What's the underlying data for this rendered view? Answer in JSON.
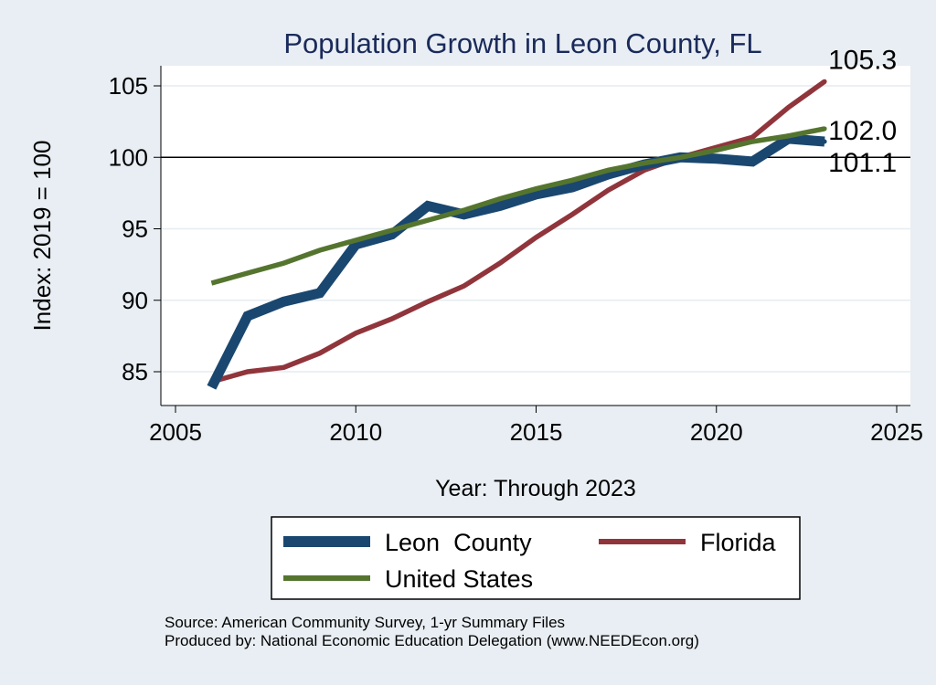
{
  "chart_data": {
    "type": "line",
    "title": "Population Growth in Leon County, FL",
    "xlabel": "Year: Through 2023",
    "ylabel": "Index: 2019 = 100",
    "xlim": [
      2005,
      2025
    ],
    "ylim": [
      83,
      107
    ],
    "x_ticks": [
      2005,
      2010,
      2015,
      2020,
      2025
    ],
    "y_ticks": [
      85,
      90,
      95,
      100,
      105
    ],
    "reference_line": 100,
    "grid": true,
    "legend_position": "bottom",
    "series": [
      {
        "name": "Leon  County",
        "color": "#1a476f",
        "x": [
          2006,
          2007,
          2008,
          2009,
          2010,
          2011,
          2012,
          2013,
          2014,
          2015,
          2016,
          2017,
          2018,
          2019,
          2020,
          2021,
          2022,
          2023
        ],
        "values": [
          83.9,
          88.9,
          89.9,
          90.5,
          93.9,
          94.6,
          96.6,
          96.0,
          96.6,
          97.4,
          97.9,
          98.8,
          99.5,
          100.0,
          99.9,
          99.7,
          101.3,
          101.1
        ],
        "end_label": "101.1"
      },
      {
        "name": "Florida",
        "color": "#90353b",
        "x": [
          2006,
          2007,
          2008,
          2009,
          2010,
          2011,
          2012,
          2013,
          2014,
          2015,
          2016,
          2017,
          2018,
          2019,
          2020,
          2021,
          2022,
          2023
        ],
        "values": [
          84.3,
          85.0,
          85.3,
          86.3,
          87.7,
          88.7,
          89.9,
          91.0,
          92.6,
          94.4,
          96.0,
          97.7,
          99.1,
          100.0,
          100.7,
          101.4,
          103.5,
          105.3
        ],
        "end_label": "105.3"
      },
      {
        "name": "United States",
        "color": "#55752f",
        "x": [
          2006,
          2007,
          2008,
          2009,
          2010,
          2011,
          2012,
          2013,
          2014,
          2015,
          2016,
          2017,
          2018,
          2019,
          2020,
          2021,
          2022,
          2023
        ],
        "values": [
          91.2,
          91.9,
          92.6,
          93.5,
          94.2,
          94.9,
          95.6,
          96.3,
          97.1,
          97.8,
          98.4,
          99.1,
          99.6,
          100.0,
          100.5,
          101.1,
          101.5,
          102.0
        ],
        "end_label": "102.0"
      }
    ],
    "legend_order": [
      "Leon  County",
      "Florida",
      "United States"
    ],
    "source": "Source: American Community Survey, 1-yr Summary Files",
    "producer": "Produced by: National Economic Education Delegation (www.NEEDEcon.org)"
  }
}
